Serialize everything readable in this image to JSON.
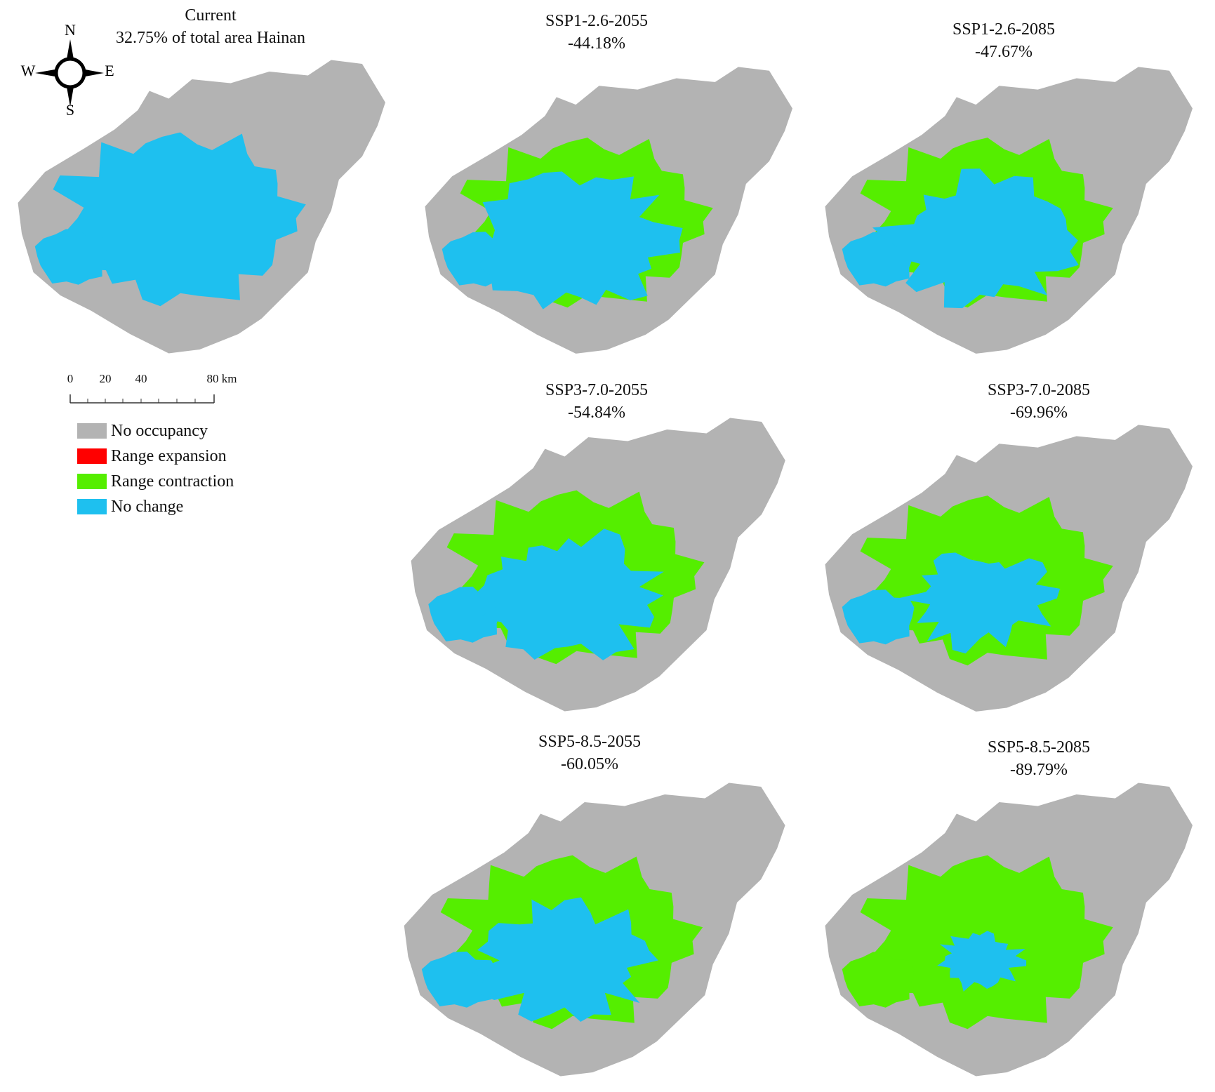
{
  "colors": {
    "no_occupancy": "#b3b3b3",
    "range_expansion": "#ff0000",
    "range_contraction": "#55ee00",
    "no_change": "#1ec0ef"
  },
  "compass": {
    "n": "N",
    "s": "S",
    "e": "E",
    "w": "W"
  },
  "scalebar": {
    "ticks": [
      "0",
      "20",
      "40",
      "80 km"
    ]
  },
  "legend": [
    {
      "label": "No occupancy",
      "color_key": "no_occupancy"
    },
    {
      "label": "Range expansion",
      "color_key": "range_expansion"
    },
    {
      "label": "Range contraction",
      "color_key": "range_contraction"
    },
    {
      "label": "No change",
      "color_key": "no_change"
    }
  ],
  "maps": [
    {
      "id": "current",
      "title": "Current",
      "value": "32.75% of total area Hainan",
      "contraction_fraction": 0.0
    },
    {
      "id": "ssp126-2055",
      "title": "SSP1-2.6-2055",
      "value": "-44.18%",
      "contraction_fraction": 0.4418
    },
    {
      "id": "ssp126-2085",
      "title": "SSP1-2.6-2085",
      "value": "-47.67%",
      "contraction_fraction": 0.4767
    },
    {
      "id": "ssp370-2055",
      "title": "SSP3-7.0-2055",
      "value": "-54.84%",
      "contraction_fraction": 0.5484
    },
    {
      "id": "ssp370-2085",
      "title": "SSP3-7.0-2085",
      "value": "-69.96%",
      "contraction_fraction": 0.6996
    },
    {
      "id": "ssp585-2055",
      "title": "SSP5-8.5-2055",
      "value": "-60.05%",
      "contraction_fraction": 0.6005
    },
    {
      "id": "ssp585-2085",
      "title": "SSP5-8.5-2085",
      "value": "-89.79%",
      "contraction_fraction": 0.8979
    }
  ]
}
